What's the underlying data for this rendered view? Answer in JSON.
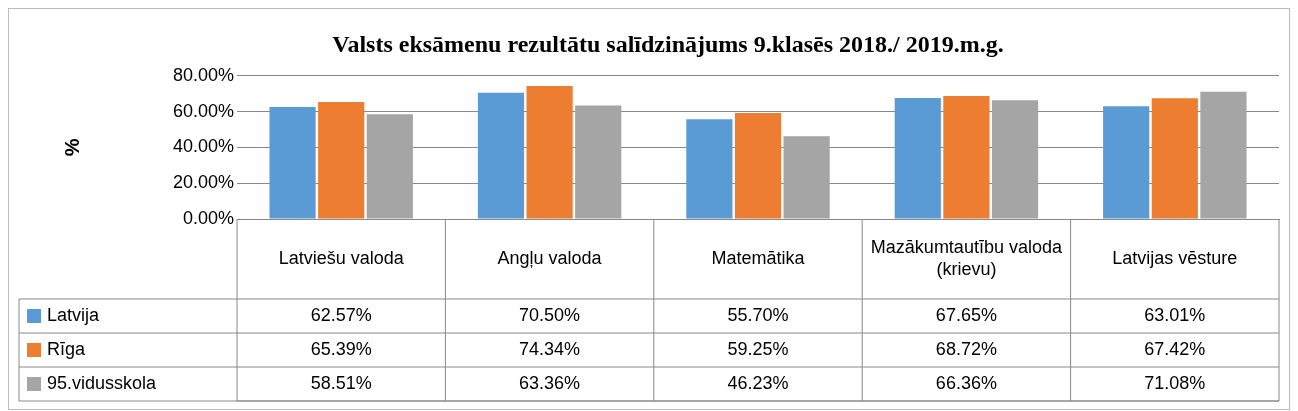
{
  "chart_data": {
    "type": "bar",
    "title": "Valsts eksāmenu rezultātu salīdzinājums 9.klasēs 2018./ 2019.m.g.",
    "ylabel": "%",
    "categories": [
      "Latviešu valoda",
      "Angļu valoda",
      "Matemātika",
      "Mazākumtautību valoda(krievu)",
      "Latvijas vēsture"
    ],
    "series": [
      {
        "name": "Latvija",
        "color": "#5b9bd5",
        "values": [
          62.57,
          70.5,
          55.7,
          67.65,
          63.01
        ],
        "value_labels": [
          "62.57%",
          "70.50%",
          "55.70%",
          "67.65%",
          "63.01%"
        ]
      },
      {
        "name": "Rīga",
        "color": "#ed7d31",
        "values": [
          65.39,
          74.34,
          59.25,
          68.72,
          67.42
        ],
        "value_labels": [
          "65.39%",
          "74.34%",
          "59.25%",
          "68.72%",
          "67.42%"
        ]
      },
      {
        "name": "95.vidusskola",
        "color": "#a5a5a5",
        "values": [
          58.51,
          63.36,
          46.23,
          66.36,
          71.08
        ],
        "value_labels": [
          "58.51%",
          "63.36%",
          "46.23%",
          "66.36%",
          "71.08%"
        ]
      }
    ],
    "ylim": [
      0,
      80
    ],
    "yticks": [
      {
        "value": 0,
        "label": "0.00%"
      },
      {
        "value": 20,
        "label": "20.00%"
      },
      {
        "value": 40,
        "label": "40.00%"
      },
      {
        "value": 60,
        "label": "60.00%"
      },
      {
        "value": 80,
        "label": "80.00%"
      }
    ],
    "grid": "y",
    "legend": "bottom"
  }
}
